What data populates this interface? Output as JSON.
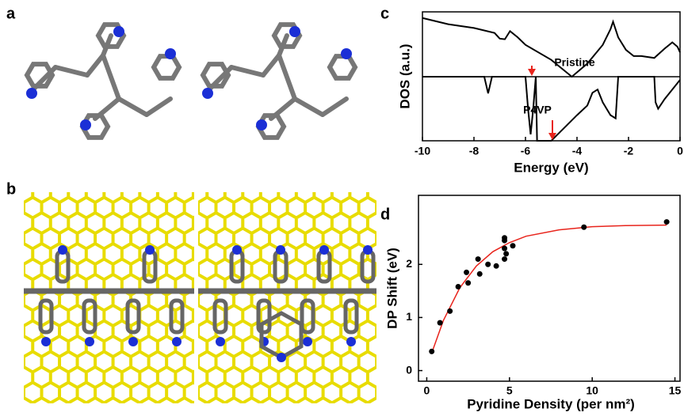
{
  "panel_labels": [
    "a",
    "b",
    "c",
    "d"
  ],
  "chart_data": [
    {
      "type": "line",
      "xlabel": "Energy (eV)",
      "ylabel": "DOS (a.u.)",
      "xlim": [
        -10,
        0
      ],
      "xticks": [
        -10,
        -8,
        -6,
        -4,
        -2,
        0
      ],
      "series": [
        {
          "name": "Pristine",
          "color": "#000000",
          "ylim": [
            0,
            1
          ],
          "x": [
            -10,
            -9,
            -8,
            -7.2,
            -7,
            -6.8,
            -6.6,
            -6.3,
            -6,
            -5,
            -4.2,
            -3.6,
            -3,
            -2.7,
            -2.6,
            -2.4,
            -2.1,
            -1.8,
            -1.5,
            -1,
            -0.6,
            -0.3,
            -0.1,
            0
          ],
          "values": [
            0.94,
            0.84,
            0.78,
            0.7,
            0.61,
            0.6,
            0.73,
            0.63,
            0.51,
            0.27,
            0,
            0.21,
            0.51,
            0.76,
            0.88,
            0.63,
            0.43,
            0.33,
            0.33,
            0.3,
            0.45,
            0.55,
            0.48,
            0.39
          ]
        },
        {
          "name": "P4VP",
          "color": "#000000",
          "ylim": [
            0,
            1
          ],
          "x": [
            -10,
            -7.6,
            -7.45,
            -7.3,
            -6,
            -5.9,
            -5.8,
            -5.7,
            -5.6,
            -5.55,
            -5,
            -4.5,
            -4,
            -3.6,
            -3.4,
            -3.2,
            -3,
            -2.7,
            -2.5,
            -2.4,
            -1,
            -0.95,
            -0.85,
            -0.6,
            -0.2,
            0
          ],
          "values": [
            1,
            1,
            0.74,
            1,
            1,
            0.5,
            0.1,
            0.5,
            1,
            0,
            0,
            0.2,
            0.4,
            0.55,
            0.75,
            0.8,
            0.6,
            0.4,
            0.35,
            1,
            1,
            0.6,
            0.5,
            0.65,
            0.85,
            0.95
          ]
        }
      ]
    },
    {
      "type": "scatter",
      "xlabel": "Pyridine Density (per nm²)",
      "ylabel": "DP Shift (eV)",
      "xlim": [
        -0.5,
        15.5
      ],
      "xticks": [
        0,
        5,
        10,
        15
      ],
      "ylim": [
        -0.2,
        3.3
      ],
      "yticks": [
        0,
        1,
        2
      ],
      "series": [
        {
          "type": "scatter",
          "color": "#000000",
          "x": [
            0.3,
            0.8,
            1.4,
            1.9,
            2.4,
            2.5,
            3.1,
            3.2,
            3.7,
            4.2,
            4.7,
            4.7,
            4.7,
            4.7,
            4.8,
            5.2,
            9.5,
            14.5
          ],
          "values": [
            0.36,
            0.9,
            1.12,
            1.58,
            1.85,
            1.65,
            2.1,
            1.82,
            2.0,
            1.97,
            2.5,
            2.45,
            2.3,
            2.1,
            2.2,
            2.35,
            2.7,
            2.8
          ]
        },
        {
          "type": "line",
          "color": "#e8241c",
          "x": [
            0.3,
            1,
            2,
            3,
            4,
            5,
            6,
            8,
            10,
            12,
            14.5
          ],
          "values": [
            0.33,
            0.94,
            1.56,
            1.97,
            2.24,
            2.41,
            2.53,
            2.65,
            2.71,
            2.73,
            2.74
          ]
        }
      ]
    }
  ]
}
